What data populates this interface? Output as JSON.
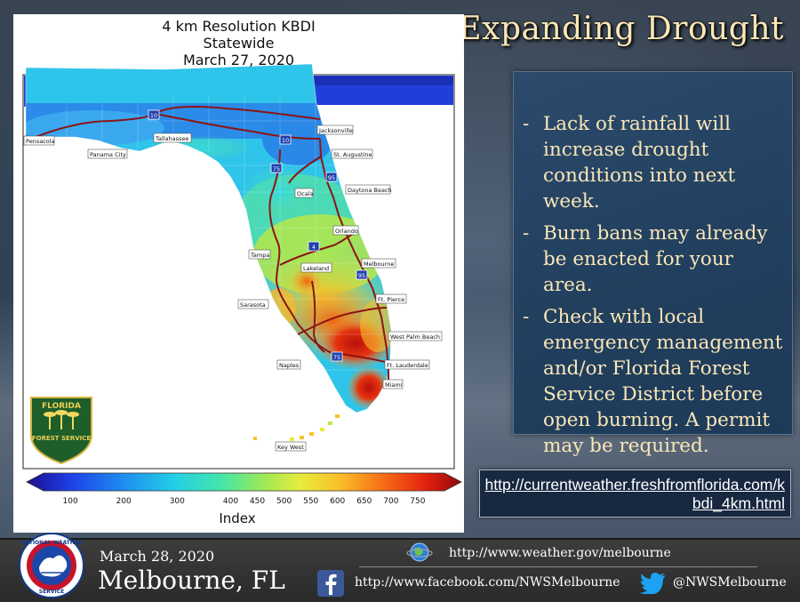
{
  "slide": {
    "title": "Expanding Drought",
    "bullets": [
      "Lack of rainfall will increase drought conditions into next week.",
      "Burn bans may already be enacted for your area.",
      "Check with local emergency management and/or Florida Forest Service District before open burning.  A permit may be required."
    ],
    "bullet_marker": "-",
    "url": "http://currentweather.freshfromflorida.com/kbdi_4km.html"
  },
  "map": {
    "title_lines": [
      "4 km Resolution KBDI",
      "Statewide",
      "March 27, 2020"
    ],
    "cities": [
      "Pensacola",
      "Tallahassee",
      "Panama City",
      "Jacksonville",
      "St. Augustine",
      "Ocala",
      "Daytona Beach",
      "Orlando",
      "Tampa",
      "Lakeland",
      "Melbourne",
      "Sarasota",
      "Ft. Pierce",
      "West Palm Beach",
      "Naples",
      "Ft. Lauderdale",
      "Miami",
      "Key West"
    ],
    "interstates": [
      "10",
      "10",
      "75",
      "95",
      "4",
      "95",
      "75"
    ],
    "colorbar": {
      "label": "Index",
      "ticks": [
        "100",
        "200",
        "300",
        "400",
        "450",
        "500",
        "550",
        "600",
        "650",
        "700",
        "750"
      ],
      "tick_values": [
        100,
        200,
        300,
        400,
        450,
        500,
        550,
        600,
        650,
        700,
        750
      ],
      "range": [
        50,
        800
      ],
      "colors": [
        "#1a0e8c",
        "#1f3fe6",
        "#1d8cf0",
        "#23cfe6",
        "#44e6a8",
        "#9be85a",
        "#e6ec3c",
        "#fbbf2a",
        "#f66d16",
        "#e3200f",
        "#8e0a0a"
      ]
    },
    "logo": {
      "top": "FLORIDA",
      "bottom": "FOREST SERVICE"
    }
  },
  "footer": {
    "date": "March 28, 2020",
    "office": "Melbourne, FL",
    "web": "http://www.weather.gov/melbourne",
    "facebook": "http://www.facebook.com/NWSMelbourne",
    "twitter": "@NWSMelbourne",
    "nws_logo": {
      "top": "NATIONAL WEATHER",
      "bottom": "SERVICE"
    }
  }
}
